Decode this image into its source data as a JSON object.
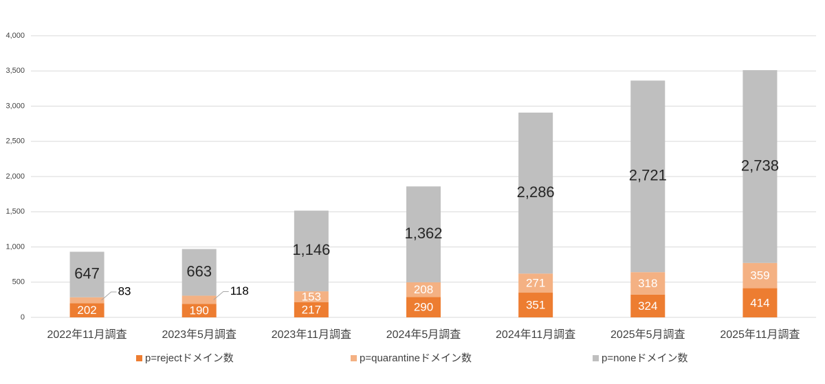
{
  "chart_data": {
    "type": "stacked_bar",
    "categories": [
      "2022年11月調査",
      "2023年5月調査",
      "2023年11月調査",
      "2024年5月調査",
      "2024年11月調査",
      "2025年5月調査",
      "2025年11月調査"
    ],
    "series": [
      {
        "name": "p=rejectドメイン数",
        "color": "#ED7D31",
        "values": [
          202,
          190,
          217,
          290,
          351,
          324,
          414
        ]
      },
      {
        "name": "p=quarantineドメイン数",
        "color": "#F4B183",
        "values": [
          83,
          118,
          153,
          208,
          271,
          318,
          359
        ]
      },
      {
        "name": "p=noneドメイン数",
        "color": "#BFBFBF",
        "values": [
          647,
          663,
          1146,
          1362,
          2286,
          2721,
          2738
        ],
        "value_labels": [
          "647",
          "663",
          "1,146",
          "1,362",
          "2,286",
          "2,721",
          "2,738"
        ]
      }
    ],
    "ylim": [
      0,
      4000
    ],
    "yticks": [
      0,
      500,
      {
        "value": 1000,
        "label": "1,000"
      },
      {
        "value": 1500,
        "label": "1,500"
      },
      {
        "value": 2000,
        "label": "2,000"
      },
      {
        "value": 2500,
        "label": "2,500"
      },
      {
        "value": 3000,
        "label": "3,000"
      },
      {
        "value": 3500,
        "label": "3,500"
      },
      {
        "value": 4000,
        "label": "4,000"
      }
    ],
    "grid": true,
    "legend": "bottom"
  }
}
